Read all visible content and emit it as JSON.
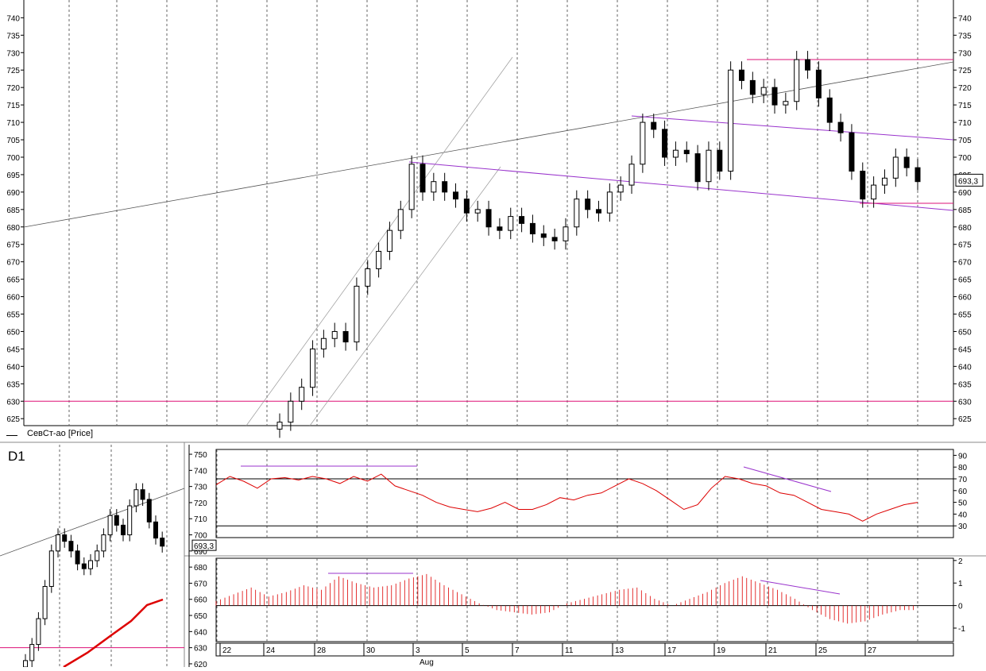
{
  "panel_label": "D1",
  "legend": "СевСт-ао [Price]",
  "last_price": "693,3",
  "small_price": "693,3",
  "colors": {
    "price": "#000000",
    "hline": "#dd1177",
    "channel": "#9933cc",
    "trend": "#555555",
    "osc": "#dd0000"
  },
  "main_axis": {
    "ymin": 623,
    "ymax": 745,
    "ticks": [
      625,
      630,
      635,
      640,
      645,
      650,
      655,
      660,
      665,
      670,
      675,
      680,
      685,
      690,
      695,
      700,
      705,
      710,
      715,
      720,
      725,
      730,
      735,
      740,
      745
    ]
  },
  "mini_axis": {
    "ticks": [
      620,
      630,
      640,
      650,
      660,
      670,
      680,
      690,
      700,
      710,
      720,
      730,
      740,
      750
    ]
  },
  "date_labels": [
    "22",
    "24",
    "28",
    "30",
    "3",
    "5",
    "7",
    "11",
    "13",
    "17",
    "19",
    "21",
    "25",
    "27"
  ],
  "month_label": "Aug",
  "osc1": {
    "ticks": [
      "30",
      "40",
      "50",
      "60",
      "70",
      "80",
      "90"
    ],
    "levels": [
      70,
      30
    ]
  },
  "osc2": {
    "ticks": [
      "2",
      "1",
      "0",
      "-1"
    ]
  },
  "chart_data": [
    {
      "type": "line",
      "title": "СевСт-ао [Price]",
      "series": [
        {
          "name": "СевСт-ао [Price]",
          "values": [
            624,
            630,
            634,
            645,
            648,
            650,
            647,
            663,
            668,
            673,
            679,
            685,
            698,
            690,
            693,
            690,
            688,
            684,
            685,
            680,
            679,
            683,
            681,
            678,
            677,
            676,
            680,
            688,
            685,
            684,
            690,
            692,
            698,
            710,
            708,
            700,
            702,
            701,
            693,
            702,
            696,
            725,
            722,
            718,
            720,
            715,
            716,
            728,
            725,
            717,
            710,
            707,
            696,
            688,
            692,
            694,
            700,
            697,
            693
          ]
        }
      ],
      "ylim": [
        623,
        745
      ],
      "hlines": [
        630,
        728
      ],
      "last": 693.3
    },
    {
      "type": "line",
      "series": [
        {
          "name": "RSI",
          "values": [
            65,
            72,
            68,
            62,
            70,
            71,
            69,
            72,
            70,
            66,
            72,
            68,
            74,
            64,
            60,
            56,
            50,
            46,
            44,
            42,
            45,
            50,
            44,
            44,
            48,
            54,
            52,
            56,
            58,
            64,
            70,
            66,
            60,
            52,
            44,
            48,
            62,
            72,
            70,
            66,
            64,
            58,
            56,
            50,
            44,
            42,
            40,
            34,
            40,
            44,
            48,
            50
          ]
        }
      ],
      "ylim": [
        20,
        95
      ],
      "levels": [
        70,
        30
      ]
    },
    {
      "type": "bar",
      "series": [
        {
          "name": "MACD",
          "values": [
            0.2,
            0.5,
            0.8,
            0.4,
            0.6,
            0.9,
            0.7,
            1.3,
            1.0,
            0.8,
            0.9,
            1.2,
            1.4,
            0.9,
            0.5,
            0.1,
            -0.2,
            -0.3,
            -0.4,
            -0.3,
            0.1,
            0.3,
            0.5,
            0.7,
            0.8,
            0.3,
            0.0,
            0.3,
            0.6,
            1.0,
            1.3,
            1.0,
            0.7,
            0.3,
            -0.2,
            -0.6,
            -0.8,
            -0.7,
            -0.4,
            -0.2
          ]
        }
      ],
      "ylim": [
        -1.6,
        2.1
      ]
    }
  ]
}
